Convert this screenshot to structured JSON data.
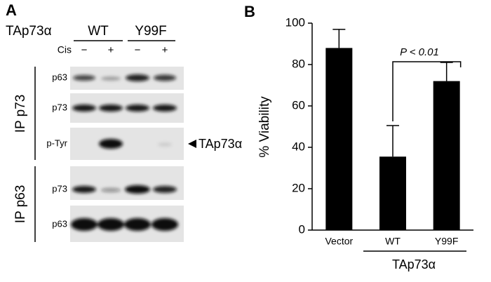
{
  "panel_a": {
    "label": "A",
    "construct": "TAp73α",
    "groups": [
      "WT",
      "Y99F"
    ],
    "treatment": "Cis",
    "lanes": [
      "−",
      "+",
      "−",
      "+"
    ],
    "ip_groups": [
      "IP p73",
      "IP p63"
    ],
    "rows": [
      "p63",
      "p73",
      "p-Tyr",
      "p73",
      "p63"
    ],
    "arrow_label": "TAp73α"
  },
  "chart_data": {
    "type": "bar",
    "panel_label": "B",
    "y_label": "% Viability",
    "categories": [
      "Vector",
      "WT",
      "Y99F"
    ],
    "values": [
      88,
      35.5,
      72
    ],
    "errors": [
      9,
      15,
      9
    ],
    "color": "#000000",
    "ylim": [
      0,
      100
    ],
    "yticks": [
      0,
      20,
      40,
      60,
      80,
      100
    ],
    "group_label": "TAp73α",
    "annotation": "P < 0.01"
  }
}
